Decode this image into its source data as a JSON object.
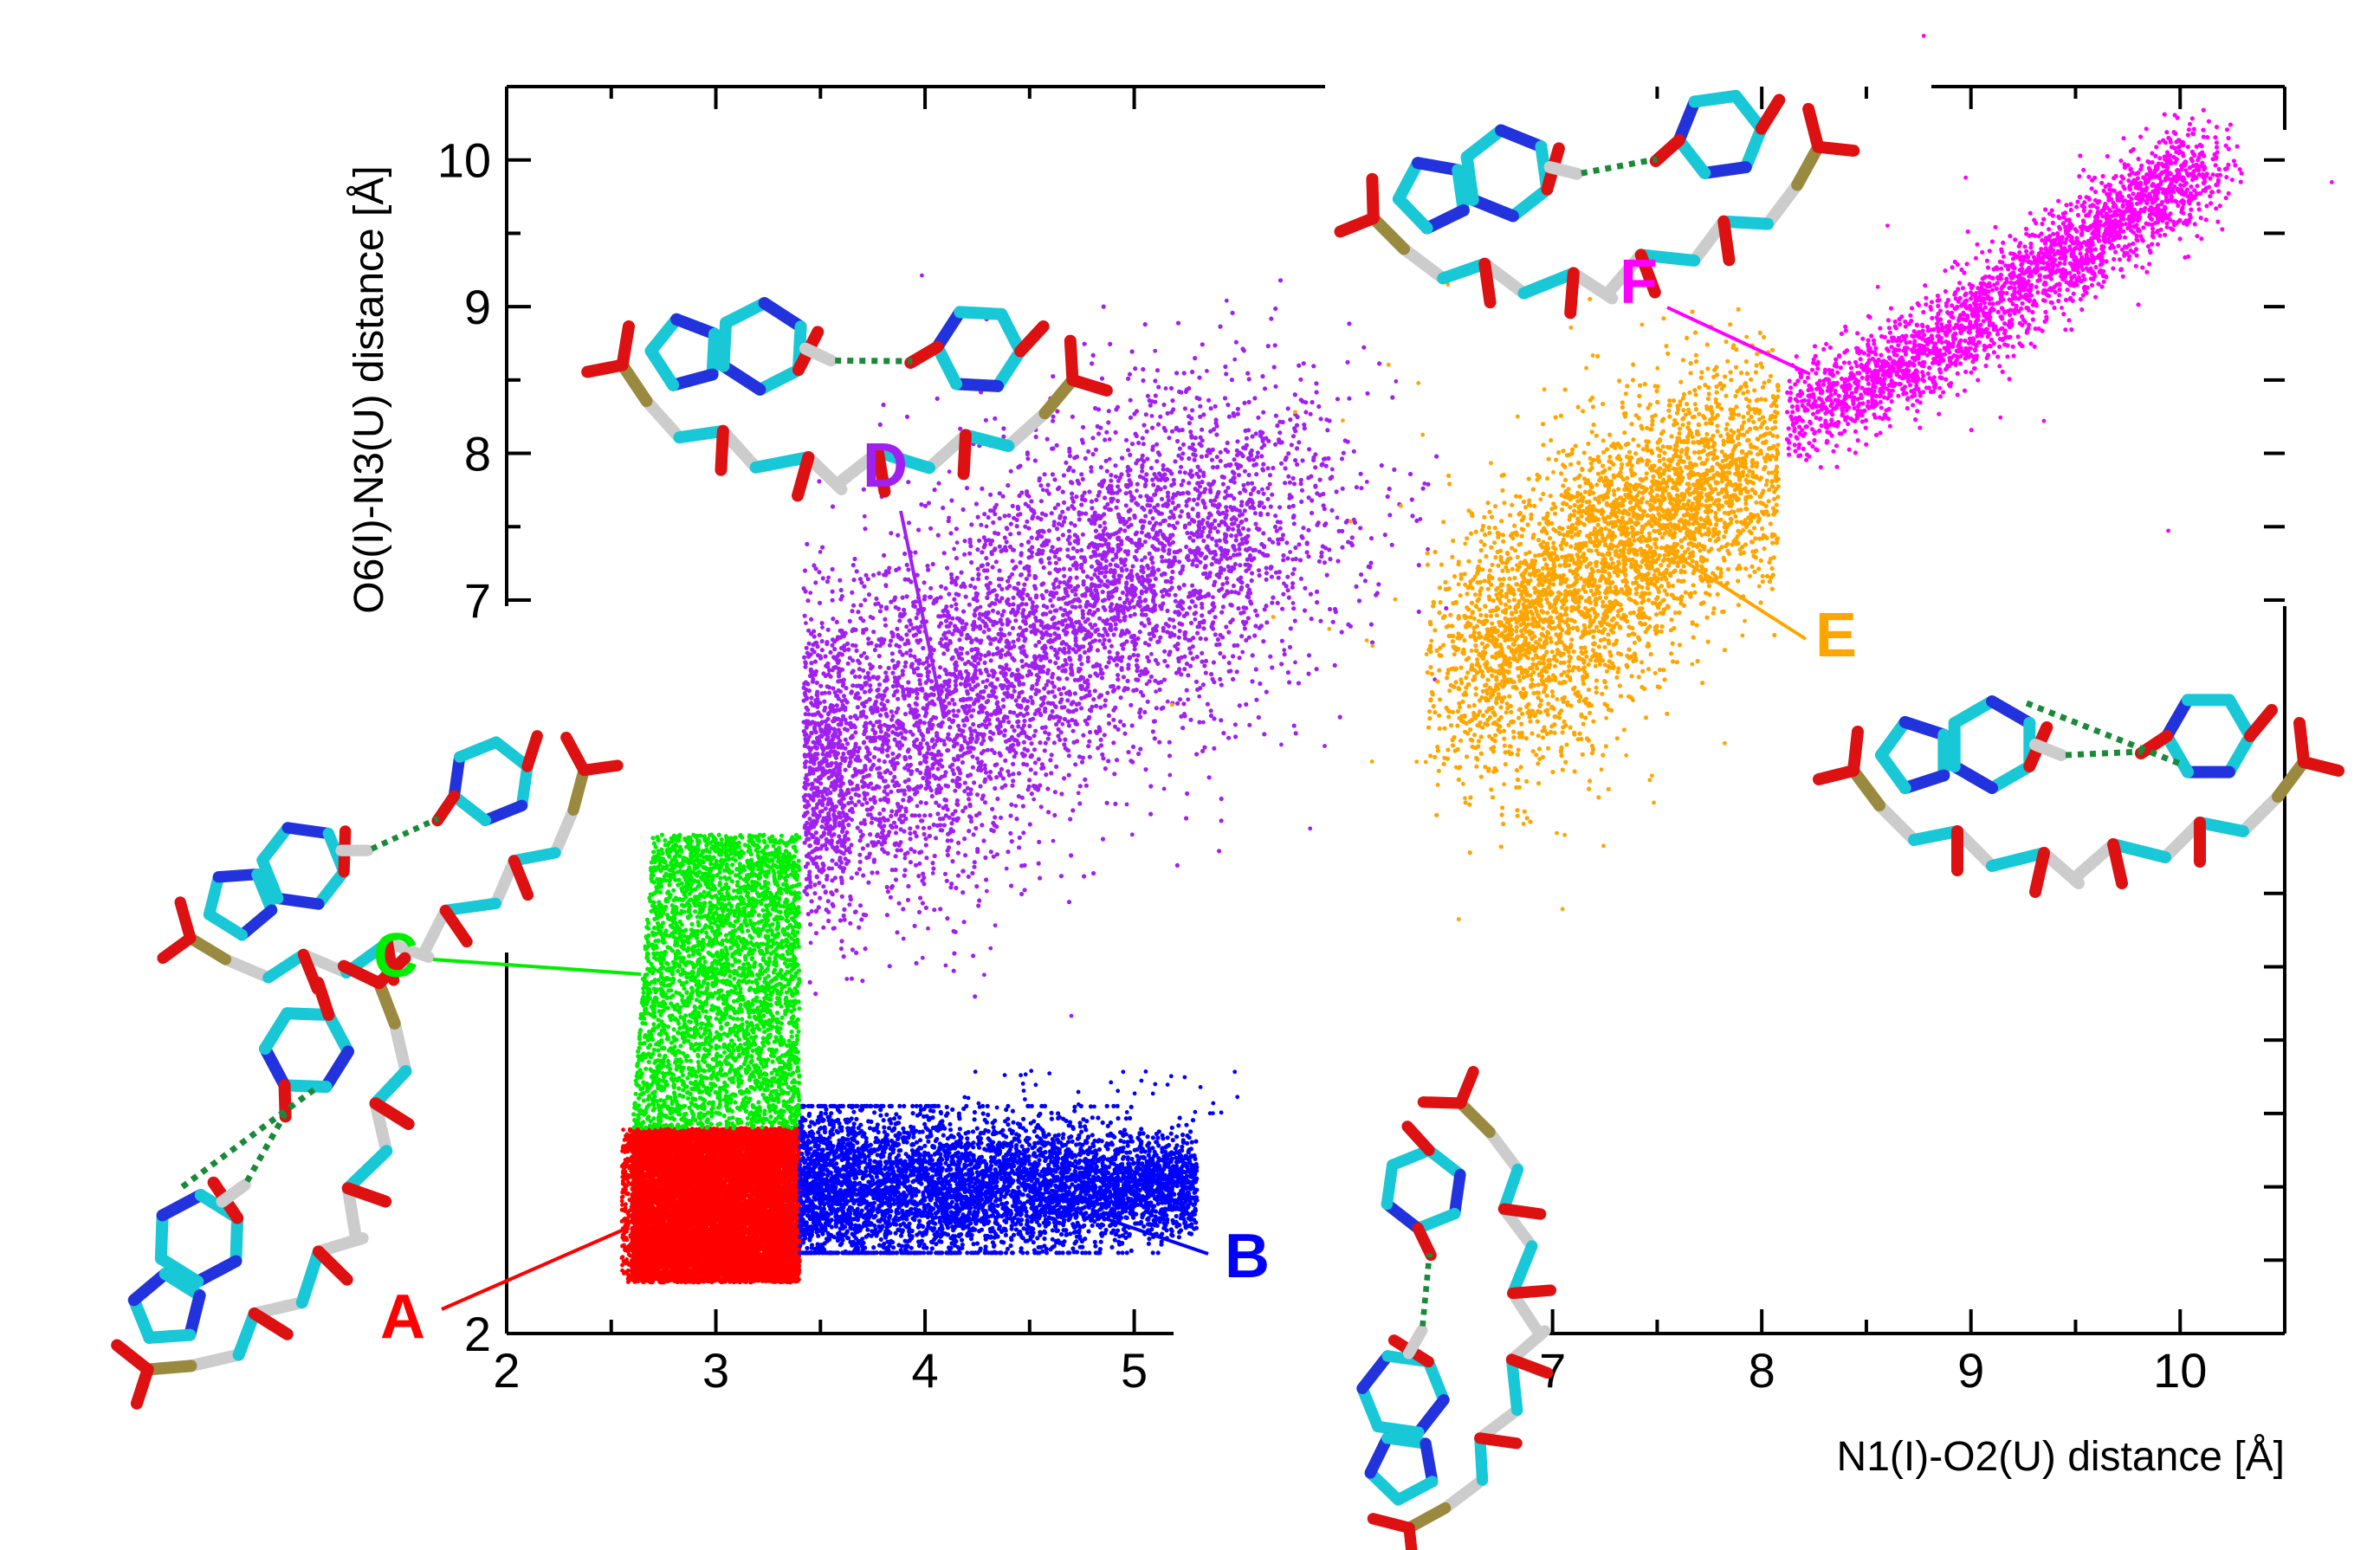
{
  "chart_data": {
    "type": "scatter",
    "title": "",
    "xlabel": "N1(I)-O2(U) distance [Å]",
    "ylabel": "O6(I)-N3(U) distance [Å]",
    "xlim": [
      2,
      10.5
    ],
    "ylim": [
      2,
      10.5
    ],
    "xticks": [
      "2",
      "3",
      "4",
      "5",
      "7",
      "8",
      "9",
      "10"
    ],
    "xtick_values": [
      2,
      3,
      4,
      5,
      7,
      8,
      9,
      10
    ],
    "yticks": [
      "2",
      "7",
      "8",
      "9",
      "10"
    ],
    "ytick_values": [
      2,
      7,
      8,
      9,
      10
    ],
    "grid": false,
    "series": [
      {
        "name": "A",
        "color": "#ff0000",
        "x_range": [
          2.6,
          3.4
        ],
        "y_range": [
          2.35,
          3.4
        ],
        "shape": "block"
      },
      {
        "name": "B",
        "color": "#0000ff",
        "x_range": [
          3.4,
          5.3
        ],
        "y_center": 3.0,
        "y_spread": 0.3,
        "shape": "horizontal-band"
      },
      {
        "name": "C",
        "color": "#00ee00",
        "x_range": [
          2.6,
          3.4
        ],
        "y_range": [
          3.4,
          5.4
        ],
        "shape": "vertical-band"
      },
      {
        "name": "D",
        "color": "#a020f0",
        "path": [
          [
            3.4,
            5.6
          ],
          [
            4.0,
            6.2
          ],
          [
            4.8,
            7.0
          ],
          [
            5.6,
            7.8
          ]
        ],
        "spread": 0.5,
        "shape": "curved-band"
      },
      {
        "name": "E",
        "color": "#ffa500",
        "path": [
          [
            6.6,
            6.2
          ],
          [
            7.0,
            7.0
          ],
          [
            7.5,
            7.6
          ],
          [
            8.1,
            8.1
          ]
        ],
        "spread": 0.35,
        "shape": "diagonal-band"
      },
      {
        "name": "F",
        "color": "#ff00ff",
        "path": [
          [
            8.1,
            8.2
          ],
          [
            8.8,
            8.7
          ],
          [
            9.5,
            9.4
          ],
          [
            10.1,
            10.0
          ]
        ],
        "spread": 0.15,
        "shape": "diagonal-band"
      }
    ],
    "annotations": [
      {
        "label": "A",
        "color": "#ff0000"
      },
      {
        "label": "B",
        "color": "#0000ff"
      },
      {
        "label": "C",
        "color": "#00ee00"
      },
      {
        "label": "D",
        "color": "#a020f0"
      },
      {
        "label": "E",
        "color": "#ffa500"
      },
      {
        "label": "F",
        "color": "#ff00ff"
      }
    ],
    "insets": [
      {
        "name": "structure-A",
        "bonds": "two hydrogen bonds"
      },
      {
        "name": "structure-B",
        "bonds": "one hydrogen bond"
      },
      {
        "name": "structure-C",
        "bonds": "one hydrogen bond"
      },
      {
        "name": "structure-D",
        "bonds": "one hydrogen bond"
      },
      {
        "name": "structure-E",
        "bonds": "two hydrogen bonds"
      },
      {
        "name": "structure-F",
        "bonds": "one hydrogen bond"
      }
    ]
  }
}
